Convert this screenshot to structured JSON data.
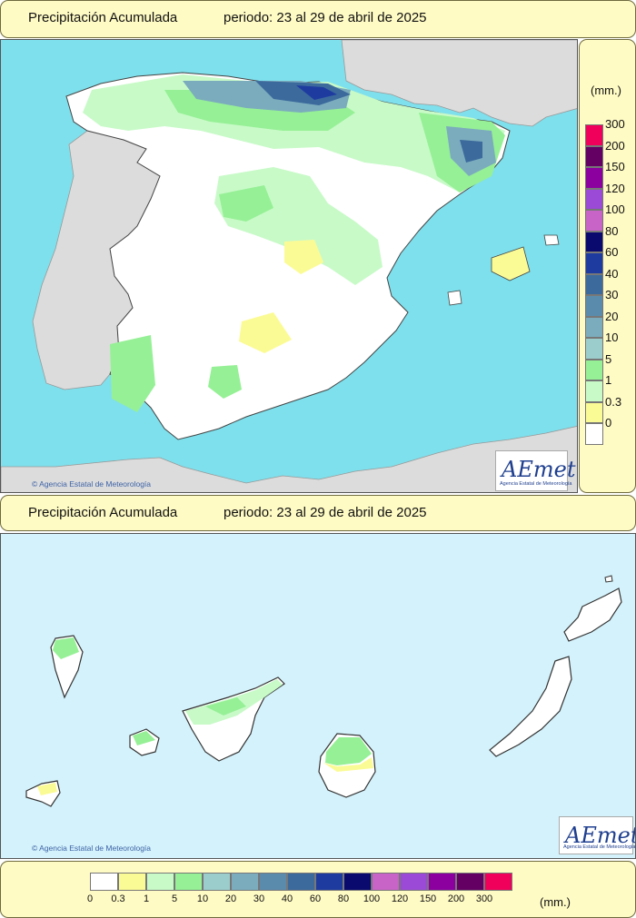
{
  "peninsula_title": {
    "label": "Precipitación Acumulada",
    "period": "periodo: 23 al 29 de abril de 2025"
  },
  "canarias_title": {
    "label": "Precipitación Acumulada",
    "period": "periodo: 23 al 29 de abril de 2025"
  },
  "copyright": "Agencia Estatal de Meteorología",
  "logo": {
    "text": "AEmet",
    "subtitle": "Agencia Estatal de Meteorología"
  },
  "legend": {
    "unit": "(mm.)",
    "classes": [
      {
        "label": "0",
        "color": "#ffffff"
      },
      {
        "label": "0.3",
        "color": "#fbfb96"
      },
      {
        "label": "1",
        "color": "#c8fac8"
      },
      {
        "label": "5",
        "color": "#96f096"
      },
      {
        "label": "10",
        "color": "#9ccdcd"
      },
      {
        "label": "20",
        "color": "#7bacbd"
      },
      {
        "label": "30",
        "color": "#5b8bac"
      },
      {
        "label": "40",
        "color": "#3c6a9c"
      },
      {
        "label": "60",
        "color": "#1e3ca0"
      },
      {
        "label": "80",
        "color": "#0a0a6e"
      },
      {
        "label": "100",
        "color": "#c864c8"
      },
      {
        "label": "120",
        "color": "#9a4ad6"
      },
      {
        "label": "150",
        "color": "#8c00a0"
      },
      {
        "label": "200",
        "color": "#640064"
      },
      {
        "label": "300",
        "color": "#f0005a"
      }
    ]
  },
  "colors": {
    "sea": "#7ee0ec",
    "land_foreign": "#dcdcdc",
    "canarias_sea": "#d4f2fb"
  }
}
